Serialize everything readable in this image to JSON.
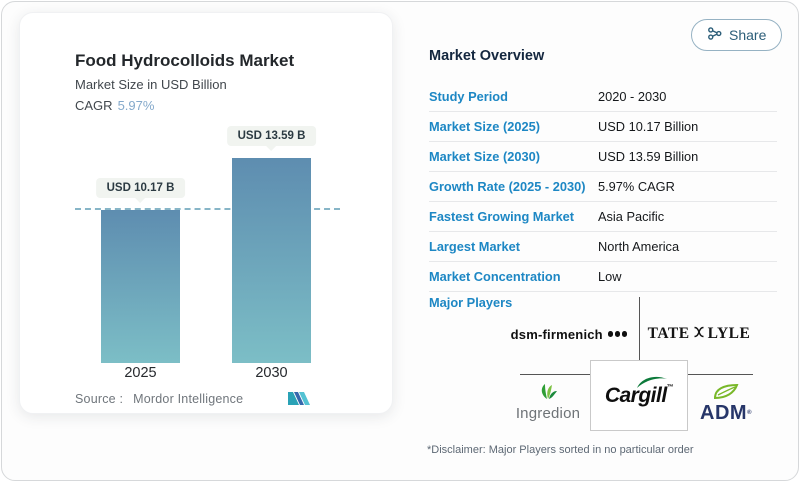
{
  "share_button": {
    "label": "Share"
  },
  "chart_card": {
    "title": "Food Hydrocolloids Market",
    "subtitle": "Market Size in USD Billion",
    "cagr_label": "CAGR",
    "cagr_value": "5.97%",
    "source_label": "Source :",
    "source_name": "Mordor Intelligence"
  },
  "chart_data": {
    "type": "bar",
    "title": "Food Hydrocolloids Market",
    "ylabel": "Market Size in USD Billion",
    "categories": [
      "2025",
      "2030"
    ],
    "values": [
      10.17,
      13.59
    ],
    "bar_value_labels": [
      "USD 10.17 B",
      "USD 13.59 B"
    ],
    "unit": "USD Billion",
    "cagr": "5.97%",
    "ylim": [
      0,
      14.6
    ],
    "reference_line_value": 10.17,
    "grid": "off",
    "legend": "none",
    "bar_color_top": "#5e8db0",
    "bar_color_bottom": "#7cbec6"
  },
  "overview": {
    "heading": "Market Overview",
    "rows": [
      {
        "label": "Study Period",
        "value": "2020 - 2030"
      },
      {
        "label": "Market Size (2025)",
        "value": "USD 10.17 Billion"
      },
      {
        "label": "Market Size (2030)",
        "value": "USD 13.59 Billion"
      },
      {
        "label": "Growth Rate (2025 - 2030)",
        "value": "5.97% CAGR"
      },
      {
        "label": "Fastest Growing Market",
        "value": "Asia Pacific"
      },
      {
        "label": "Largest Market",
        "value": "North America"
      },
      {
        "label": "Market Concentration",
        "value": "Low"
      }
    ],
    "major_players_label": "Major Players",
    "players": {
      "dsm": "dsm-firmenich",
      "tate_word1": "TATE",
      "tate_word2": "LYLE",
      "ingredion": "Ingredion",
      "cargill": "Cargill",
      "cargill_tm": "™",
      "adm": "ADM",
      "adm_r": "®"
    },
    "disclaimer": "*Disclaimer: Major Players sorted in no particular order"
  },
  "colors": {
    "accent_blue": "#1d87c4",
    "heading_navy": "#14273f",
    "cagr_blue": "#84a9cb",
    "dashed_line": "#5f9cb4",
    "tooltip_bg": "#f1f4f0",
    "mordor_teal": "#2aa2b6",
    "mordor_blue": "#3668ad",
    "mordor_light_teal": "#54c2d3"
  }
}
